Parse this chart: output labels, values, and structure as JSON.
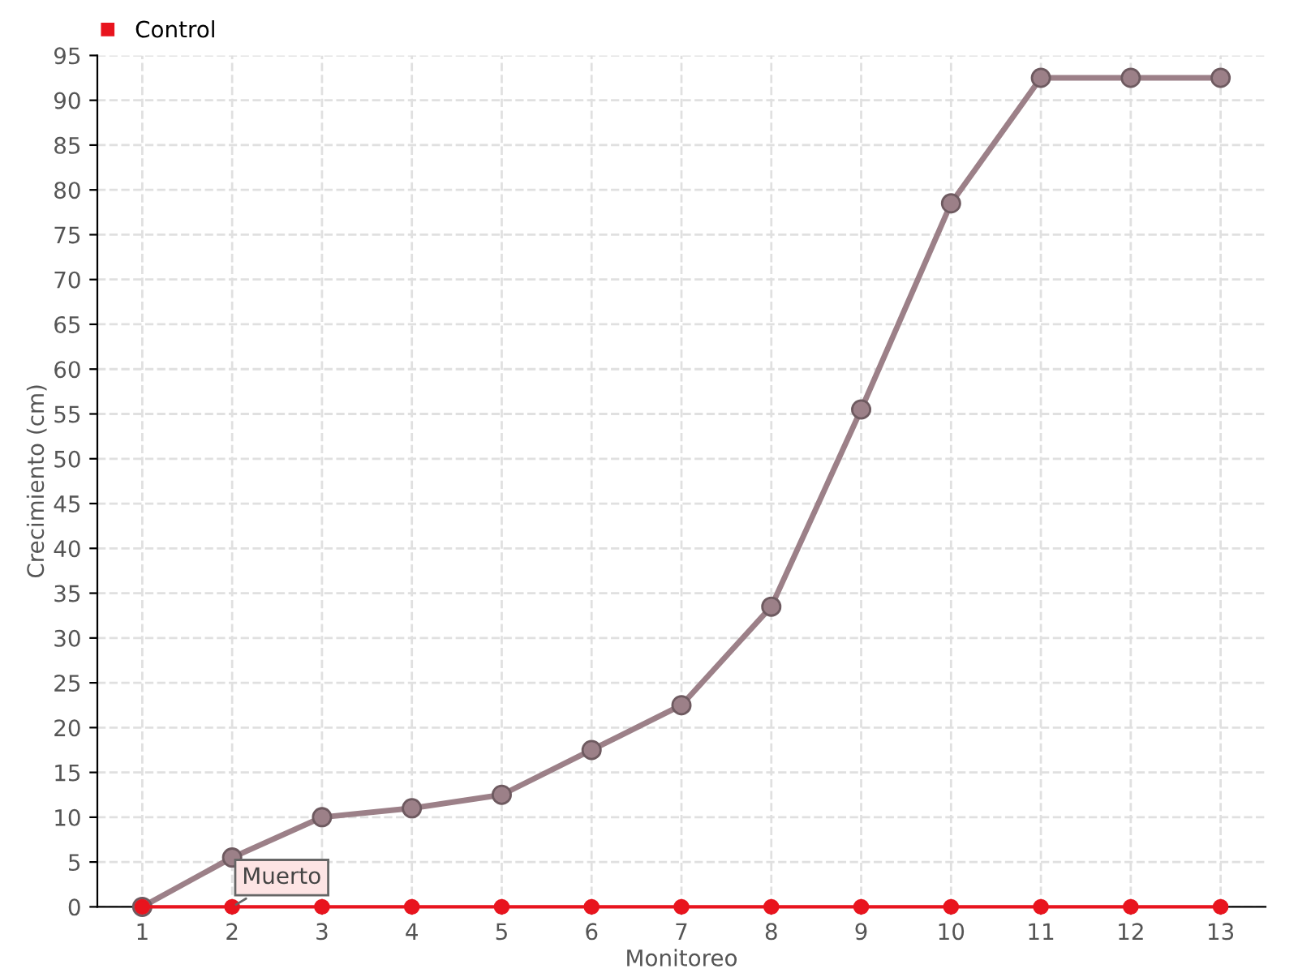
{
  "chart_data": {
    "type": "line",
    "xlabel": "Monitoreo",
    "ylabel": "Crecimiento (cm)",
    "categories": [
      "1",
      "2",
      "3",
      "4",
      "5",
      "6",
      "7",
      "8",
      "9",
      "10",
      "11",
      "12",
      "13"
    ],
    "series": [
      {
        "color": "#9c8088",
        "values": [
          0,
          5.5,
          10,
          11,
          12.5,
          17.5,
          22.5,
          33.5,
          55.5,
          78.5,
          92.5,
          92.5,
          92.5
        ]
      },
      {
        "name": "Control",
        "color": "#e8141e",
        "values": [
          0,
          0,
          0,
          0,
          0,
          0,
          0,
          0,
          0,
          0,
          0,
          0,
          0
        ]
      }
    ],
    "annotations": [
      {
        "text": "Muerto",
        "x": "2",
        "y": 0
      }
    ],
    "ylim": [
      0,
      95
    ],
    "yticks": [
      0,
      5,
      10,
      15,
      20,
      25,
      30,
      35,
      40,
      45,
      50,
      55,
      60,
      65,
      70,
      75,
      80,
      85,
      90,
      95
    ],
    "grid": true,
    "legend": "top left",
    "marker": "circle",
    "line_style": "solid"
  }
}
